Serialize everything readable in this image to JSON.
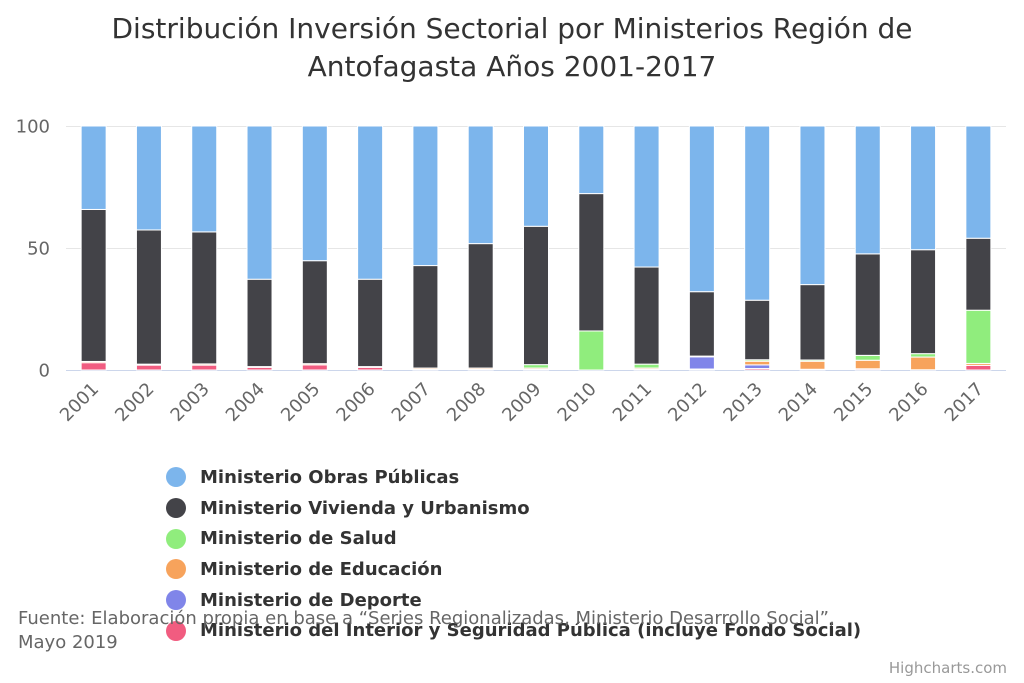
{
  "title_line1": "Distribución Inversión Sectorial por Ministerios Región de",
  "title_line2": "Antofagasta Años 2001-2017",
  "source_line1": "Fuente: Elaboración propia en base a “Series Regionalizadas, Ministerio Desarrollo Social”,",
  "source_line2": "Mayo 2019",
  "credits": "Highcharts.com",
  "chart_data": {
    "type": "bar",
    "stacking": "percent",
    "title": "Distribución Inversión Sectorial por Ministerios Región de Antofagasta Años 2001-2017",
    "categories": [
      "2001",
      "2002",
      "2003",
      "2004",
      "2005",
      "2006",
      "2007",
      "2008",
      "2009",
      "2010",
      "2011",
      "2012",
      "2013",
      "2014",
      "2015",
      "2016",
      "2017"
    ],
    "yticks": [
      0,
      50,
      100
    ],
    "ylim": [
      0,
      100
    ],
    "legend_position": "bottom",
    "series": [
      {
        "name": "Ministerio Obras Públicas",
        "color": "#7cb5ec",
        "values": [
          34.2,
          42.6,
          43.4,
          62.8,
          55.2,
          62.8,
          57.2,
          48.2,
          41.1,
          27.7,
          57.8,
          67.9,
          71.4,
          65.0,
          52.4,
          50.7,
          46.0
        ]
      },
      {
        "name": "Ministerio Vivienda y Urbanismo",
        "color": "#434348",
        "values": [
          62.3,
          55.0,
          54.1,
          35.8,
          42.2,
          35.8,
          42.0,
          51.0,
          56.7,
          56.3,
          39.8,
          26.4,
          24.4,
          30.9,
          41.6,
          42.6,
          29.5
        ]
      },
      {
        "name": "Ministerio de Salud",
        "color": "#90ed7d",
        "values": [
          0.0,
          0.0,
          0.0,
          0.0,
          0.0,
          0.0,
          0.0,
          0.0,
          1.4,
          16.0,
          1.6,
          0.0,
          0.6,
          0.5,
          2.0,
          1.4,
          21.8
        ]
      },
      {
        "name": "Ministerio de Educación",
        "color": "#f7a35c",
        "values": [
          0.5,
          0.4,
          0.5,
          0.3,
          0.5,
          0.3,
          0.5,
          0.5,
          0.5,
          0.0,
          0.5,
          0.3,
          1.5,
          3.3,
          3.5,
          5.2,
          0.8
        ]
      },
      {
        "name": "Ministerio de Deporte",
        "color": "#8085e9",
        "values": [
          0.0,
          0.0,
          0.0,
          0.0,
          0.0,
          0.0,
          0.0,
          0.0,
          0.0,
          0.0,
          0.0,
          5.0,
          1.5,
          0.0,
          0.0,
          0.0,
          0.0
        ]
      },
      {
        "name": "Ministerio del Interior y Seguridad Pública (incluye Fondo Social)",
        "color": "#f15c80",
        "values": [
          3.0,
          2.0,
          2.0,
          1.1,
          2.1,
          1.1,
          0.3,
          0.3,
          0.3,
          0.0,
          0.3,
          0.4,
          0.6,
          0.3,
          0.5,
          0.1,
          1.9
        ]
      }
    ]
  }
}
